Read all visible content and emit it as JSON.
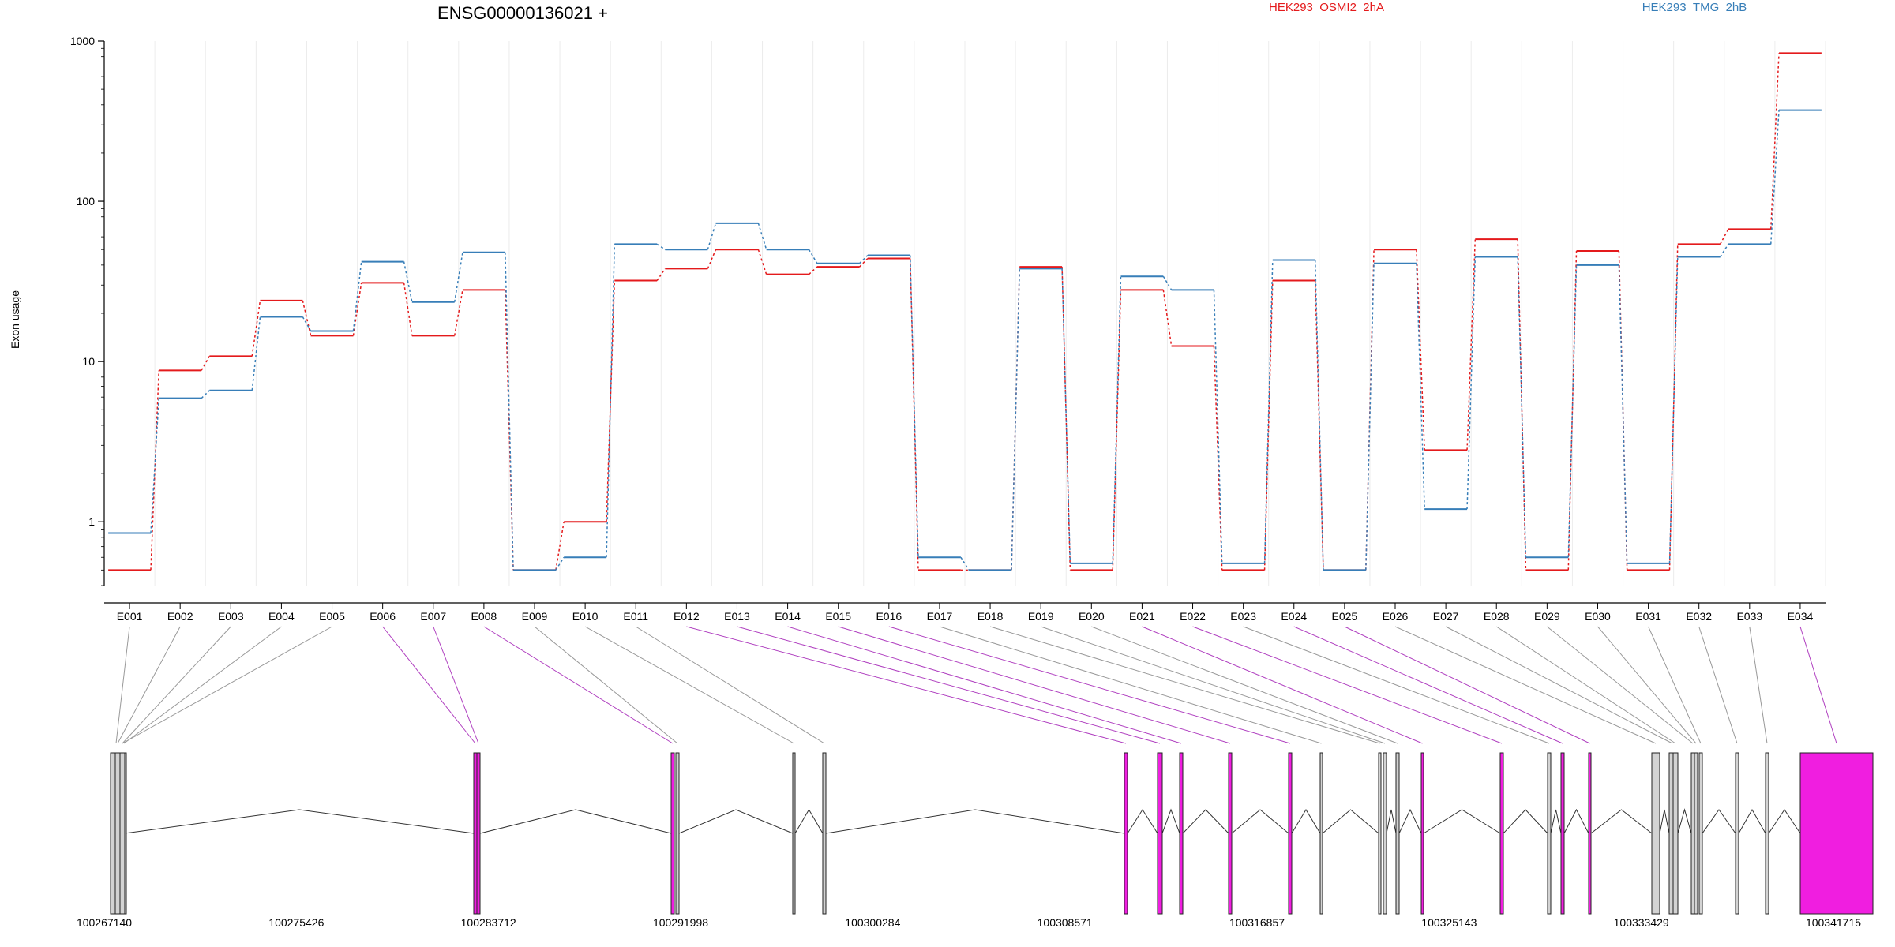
{
  "chart_data": {
    "type": "line",
    "title": "ENSG00000136021 +",
    "ylabel": "Exon usage",
    "y_scale": "log",
    "ylim": [
      0.4,
      1000
    ],
    "y_ticks": [
      1,
      10,
      100,
      1000
    ],
    "y_tick_labels": [
      "1",
      "10",
      "100",
      "1000"
    ],
    "grid": true,
    "legend": "top",
    "categories": [
      "E001",
      "E002",
      "E003",
      "E004",
      "E005",
      "E006",
      "E007",
      "E008",
      "E009",
      "E010",
      "E011",
      "E012",
      "E013",
      "E014",
      "E015",
      "E016",
      "E017",
      "E018",
      "E019",
      "E020",
      "E021",
      "E022",
      "E023",
      "E024",
      "E025",
      "E026",
      "E027",
      "E028",
      "E029",
      "E030",
      "E031",
      "E032",
      "E033",
      "E034"
    ],
    "series": [
      {
        "name": "HEK293_OSMI2_2hA",
        "color": "#e41a1c",
        "values": [
          0.5,
          8.8,
          10.8,
          24,
          14.5,
          31,
          14.5,
          28,
          0.5,
          1.0,
          32,
          38,
          50,
          35,
          39,
          44,
          0.5,
          0.5,
          39,
          0.5,
          28,
          12.5,
          0.5,
          32,
          0.5,
          50,
          2.8,
          58,
          0.5,
          49,
          0.5,
          54,
          67,
          840
        ]
      },
      {
        "name": "HEK293_TMG_2hB",
        "color": "#377eb8",
        "values": [
          0.85,
          5.9,
          6.6,
          19,
          15.5,
          42,
          23.5,
          48,
          0.5,
          0.6,
          54,
          50,
          73,
          50,
          41,
          46,
          0.6,
          0.5,
          38,
          0.55,
          34,
          28,
          0.55,
          43,
          0.5,
          41,
          1.2,
          45,
          0.6,
          40,
          0.55,
          45,
          54,
          370
        ]
      }
    ],
    "genome_axis_ticks": [
      "100267140",
      "100275426",
      "100283712",
      "100291998",
      "100300284",
      "100308571",
      "100316857",
      "100325143",
      "100333429",
      "100341715"
    ],
    "gene_model": {
      "exon_fill": "#d3d3d3",
      "highlight_fill": "#f01ee0",
      "highlighted_exons": [
        "E006",
        "E007",
        "E008",
        "E012",
        "E013",
        "E014",
        "E015",
        "E016",
        "E021",
        "E022",
        "E024",
        "E025",
        "E034"
      ]
    }
  }
}
